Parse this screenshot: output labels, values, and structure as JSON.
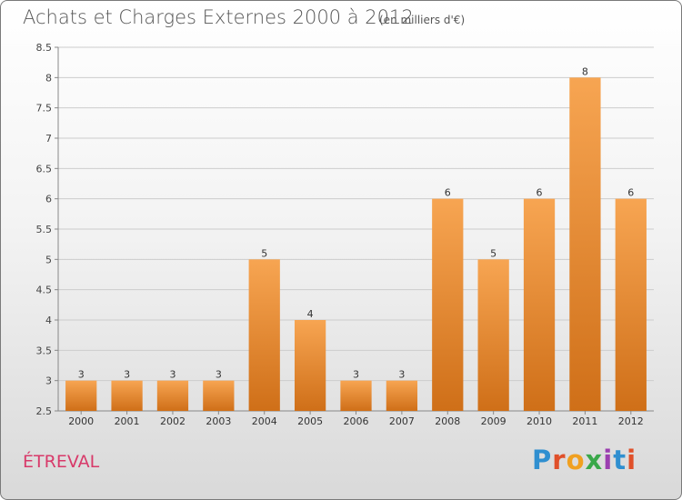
{
  "header": {
    "title": "Achats et Charges Externes 2000 à 2012",
    "subtitle": "(en milliers d'€)"
  },
  "footer": {
    "place": "ÉTREVAL",
    "logo": "Proxiti",
    "logo_colors": [
      "#2f8fd0",
      "#e0502a",
      "#f0a020",
      "#3aa84a",
      "#9b3fb0",
      "#2f8fd0",
      "#e0502a"
    ]
  },
  "chart_data": {
    "type": "bar",
    "title": "Achats et Charges Externes 2000 à 2012",
    "subtitle": "(en milliers d'€)",
    "categories": [
      "2000",
      "2001",
      "2002",
      "2003",
      "2004",
      "2005",
      "2006",
      "2007",
      "2008",
      "2009",
      "2010",
      "2011",
      "2012"
    ],
    "values": [
      3,
      3,
      3,
      3,
      5,
      4,
      3,
      3,
      6,
      5,
      6,
      8,
      6
    ],
    "ylim": [
      2.5,
      8.5
    ],
    "yticks": [
      2.5,
      3,
      3.5,
      4,
      4.5,
      5,
      5.5,
      6,
      6.5,
      7,
      7.5,
      8,
      8.5
    ],
    "ytick_labels": [
      "2.5",
      "3",
      "3.5",
      "4",
      "4.5",
      "5",
      "5.5",
      "6",
      "6.5",
      "7",
      "7.5",
      "8",
      "8.5"
    ],
    "grid": true,
    "bar_color_top": "#f7a552",
    "bar_color_bottom": "#cf6f18",
    "grid_color": "#cccccc"
  }
}
